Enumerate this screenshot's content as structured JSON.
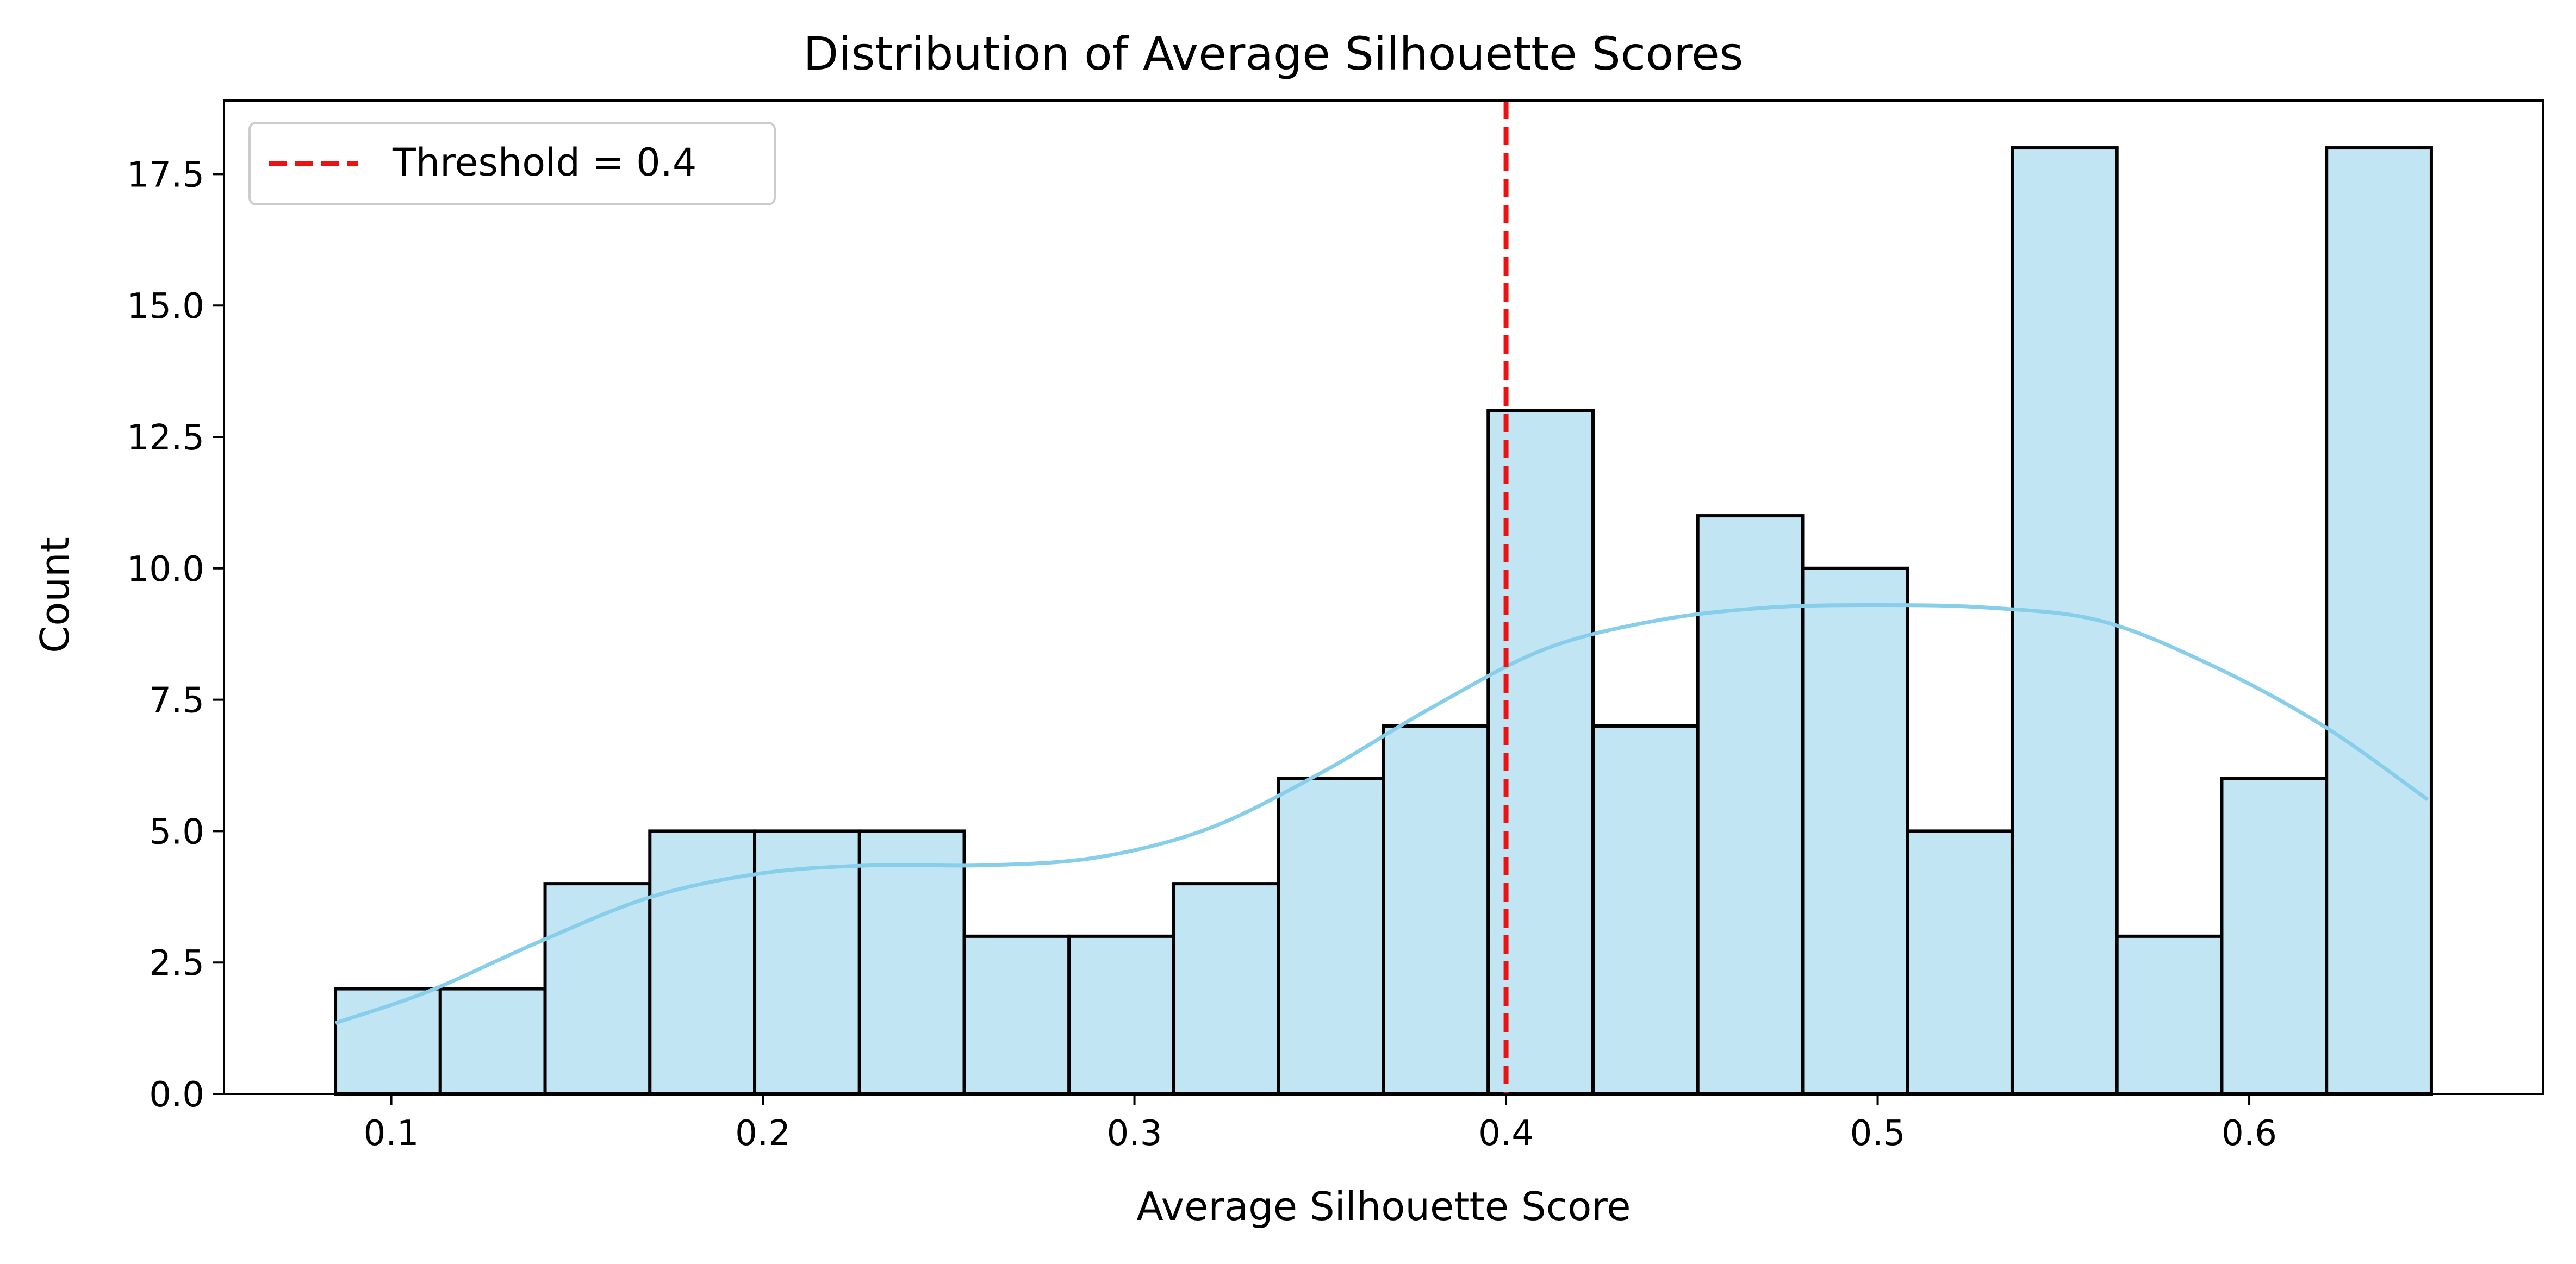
{
  "chart_data": {
    "type": "bar",
    "subtype": "histogram",
    "title": "Distribution of Average Silhouette Scores",
    "xlabel": "Average Silhouette Score",
    "ylabel": "Count",
    "xlim": [
      0.055,
      0.679
    ],
    "ylim": [
      0,
      18.9
    ],
    "xticks": [
      0.1,
      0.2,
      0.3,
      0.4,
      0.5,
      0.6
    ],
    "xtick_labels": [
      "0.1",
      "0.2",
      "0.3",
      "0.4",
      "0.5",
      "0.6"
    ],
    "yticks": [
      0,
      2.5,
      5,
      7.5,
      10,
      12.5,
      15,
      17.5
    ],
    "ytick_labels": [
      "0.0",
      "2.5",
      "5.0",
      "7.5",
      "10.0",
      "12.5",
      "15.0",
      "17.5"
    ],
    "bins": {
      "start": 0.085,
      "width": 0.0282,
      "counts": [
        2,
        2,
        4,
        5,
        5,
        5,
        3,
        3,
        4,
        6,
        7,
        13,
        7,
        11,
        10,
        5,
        18,
        3,
        6,
        18
      ]
    },
    "kde": {
      "x": [
        0.085,
        0.11,
        0.14,
        0.17,
        0.2,
        0.23,
        0.26,
        0.29,
        0.32,
        0.35,
        0.38,
        0.41,
        0.44,
        0.47,
        0.5,
        0.53,
        0.56,
        0.59,
        0.62,
        0.648
      ],
      "y": [
        1.35,
        1.95,
        2.9,
        3.75,
        4.2,
        4.35,
        4.35,
        4.5,
        5.05,
        6.1,
        7.35,
        8.45,
        9.0,
        9.25,
        9.3,
        9.25,
        9.0,
        8.15,
        7.0,
        5.6
      ]
    },
    "threshold": 0.4,
    "legend": {
      "entries": [
        "Threshold = 0.4"
      ],
      "position": "top-left"
    },
    "colors": {
      "bar_fill": "#c2e5f4",
      "bar_edge": "#000000",
      "kde_line": "#87ceeb",
      "threshold_line": "#ee1111"
    },
    "grid": false
  }
}
